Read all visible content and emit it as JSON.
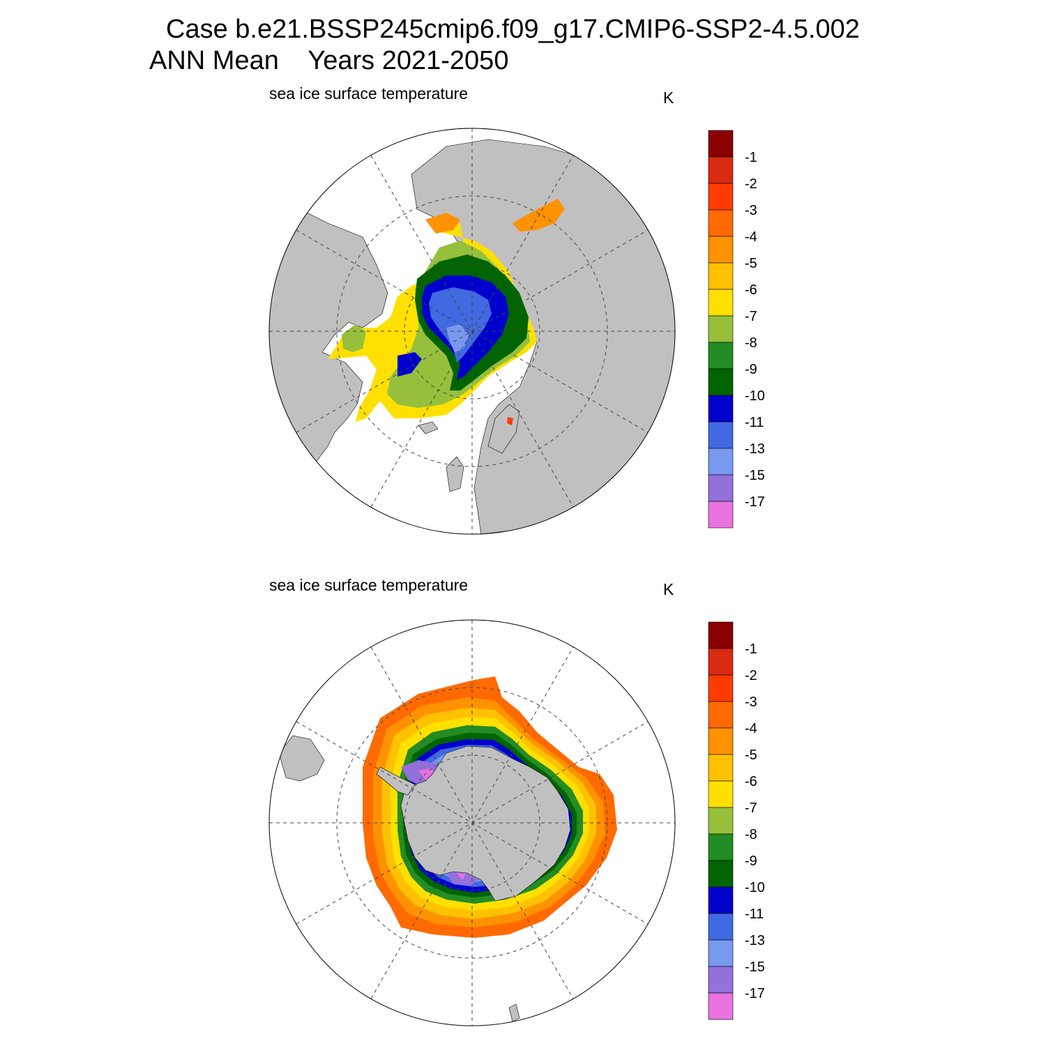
{
  "title": {
    "line1": "Case b.e21.BSSP245cmip6.f09_g17.CMIP6-SSP2-4.5.002",
    "line2": "ANN Mean    Years 2021-2050"
  },
  "panels": [
    {
      "id": "north",
      "hemisphere": "Northern",
      "variable_label": "sea ice surface temperature",
      "units": "K"
    },
    {
      "id": "south",
      "hemisphere": "Southern",
      "variable_label": "sea ice surface temperature",
      "units": "K"
    }
  ],
  "colorbar": {
    "labels": [
      "-1",
      "-2",
      "-3",
      "-4",
      "-5",
      "-6",
      "-7",
      "-8",
      "-9",
      "-10",
      "-11",
      "-13",
      "-15",
      "-17"
    ],
    "colors": [
      "#8b0000",
      "#d92b12",
      "#ff3a00",
      "#ff6a00",
      "#ff9200",
      "#ffc100",
      "#ffe000",
      "#96c03c",
      "#238c23",
      "#006400",
      "#0000cc",
      "#4169e1",
      "#7799f0",
      "#9370db",
      "#e973e0"
    ]
  },
  "map_colors": {
    "land": "#c0c0c0",
    "ocean": "#ffffff",
    "grid": "#444444"
  }
}
